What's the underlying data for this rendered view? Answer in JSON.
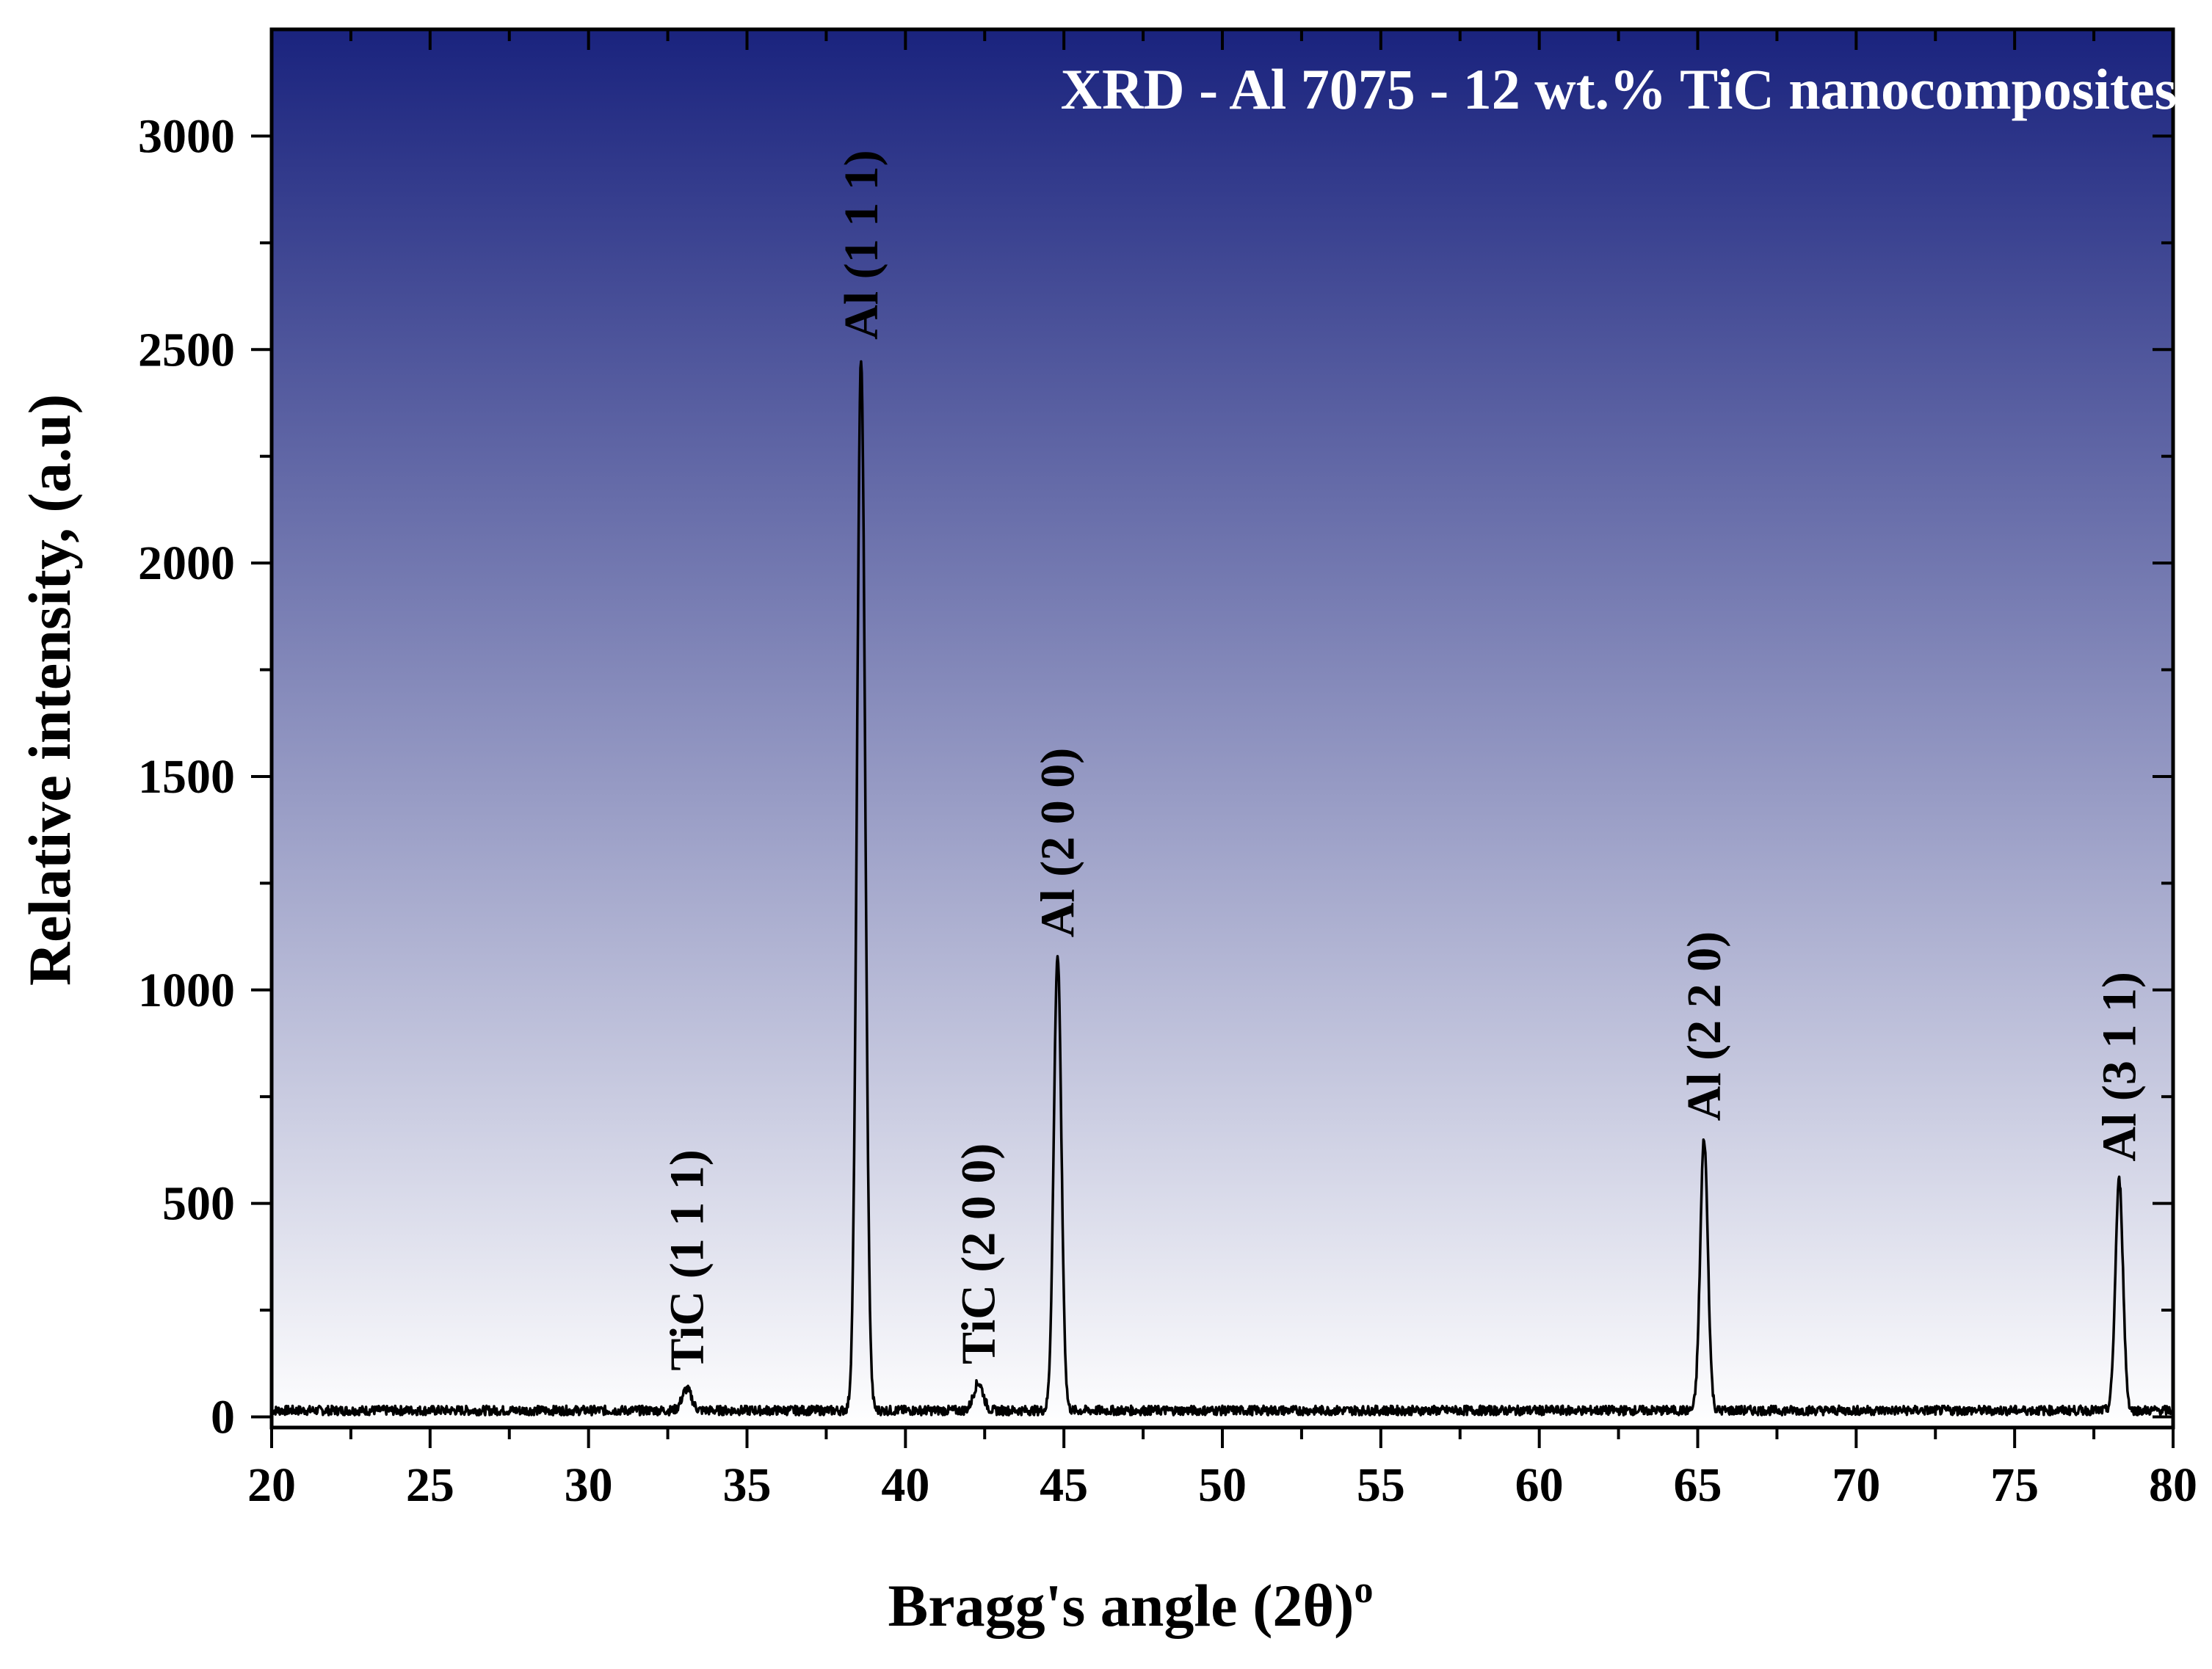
{
  "chart_data": {
    "type": "line",
    "title": "XRD - Al 7075 - 12 wt.% TiC nanocomposites",
    "xlabel": "Bragg's angle (2θ)",
    "xlabel_superscript": "o",
    "ylabel": "Relative intensity, (a.u)",
    "xlim": [
      20,
      80
    ],
    "ylim": [
      -25,
      3250
    ],
    "xticks": [
      20,
      25,
      30,
      35,
      40,
      45,
      50,
      55,
      60,
      65,
      70,
      75,
      80
    ],
    "xtick_labels": [
      "20",
      "25",
      "30",
      "35",
      "40",
      "45",
      "50",
      "55",
      "60",
      "65",
      "70",
      "75",
      "80"
    ],
    "yticks": [
      0,
      500,
      1000,
      1500,
      2000,
      2500,
      3000
    ],
    "ytick_labels": [
      "0",
      "500",
      "1000",
      "1500",
      "2000",
      "2500",
      "3000"
    ],
    "grid": false,
    "background": "gradient navy (top) to white (bottom)",
    "colors": {
      "gradient_top": "#1a237e",
      "gradient_bottom": "#ffffff",
      "line": "#000000",
      "title": "#ffffff"
    },
    "baseline": 15,
    "series": [
      {
        "peaks": [
          {
            "x": 33.1,
            "y": 65,
            "label": "TiC (1 1 1)"
          },
          {
            "x": 38.6,
            "y": 2480,
            "label": "Al (1 1 1)"
          },
          {
            "x": 42.3,
            "y": 80,
            "label": "TiC (2 0 0)"
          },
          {
            "x": 44.8,
            "y": 1080,
            "label": "Al (2 0 0)"
          },
          {
            "x": 65.2,
            "y": 650,
            "label": "Al (2 2 0)"
          },
          {
            "x": 78.3,
            "y": 555,
            "label": "Al (3 1 1)"
          }
        ]
      }
    ],
    "annotations": [
      "TiC (1 1 1)",
      "Al (1 1 1)",
      "TiC (2 0 0)",
      "Al (2 0 0)",
      "Al (2 2 0)",
      "Al (3 1 1)"
    ]
  }
}
